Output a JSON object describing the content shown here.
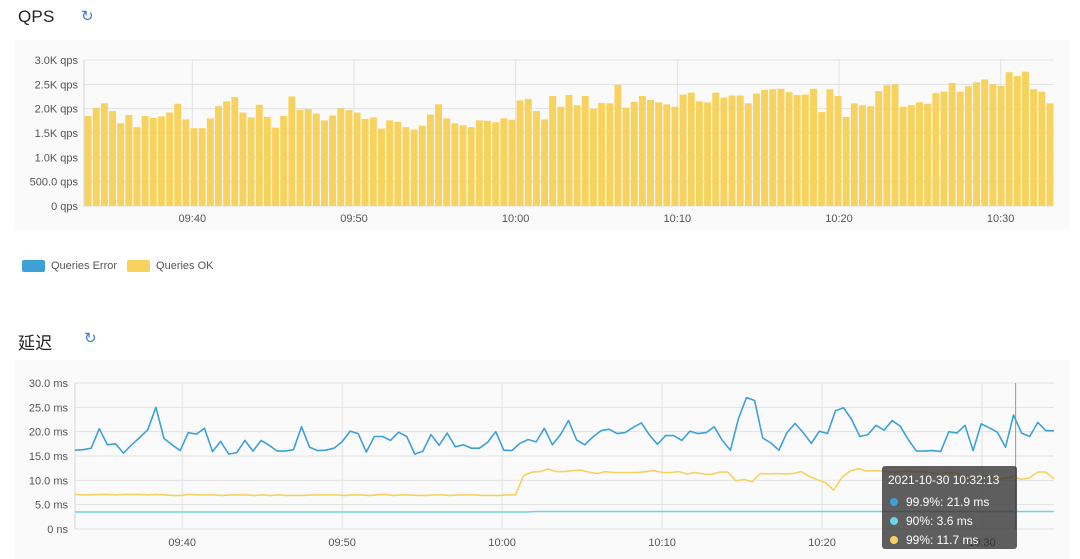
{
  "qps": {
    "title": "QPS",
    "refresh_icon": "refresh-icon",
    "legend": [
      {
        "label": "Queries Error",
        "color": "#3ea1d6"
      },
      {
        "label": "Queries OK",
        "color": "#f8d25f"
      }
    ]
  },
  "latency": {
    "title": "延迟",
    "refresh_icon": "refresh-icon"
  },
  "tooltip": {
    "time": "2021-10-30 10:32:13",
    "rows": [
      {
        "text": "99.9%: 21.9 ms",
        "color": "#3ea1d6"
      },
      {
        "text": "90%: 3.6 ms",
        "color": "#6fd3e8"
      },
      {
        "text": "99%: 11.7 ms",
        "color": "#f8d25f"
      }
    ]
  },
  "chart_data": [
    {
      "type": "bar",
      "title": "",
      "xlabel": "",
      "ylabel": "",
      "y_ticks": [
        "0 qps",
        "500.0 qps",
        "1.0K qps",
        "1.5K qps",
        "2.0K qps",
        "2.5K qps",
        "3.0K qps"
      ],
      "ylim": [
        0,
        3000
      ],
      "x_ticks": [
        "09:40",
        "09:50",
        "10:00",
        "10:10",
        "10:20",
        "10:30"
      ],
      "x_tick_minutes": [
        40,
        50,
        60,
        70,
        80,
        90
      ],
      "x_range_minutes": [
        33.3,
        93.3
      ],
      "grid": true,
      "legend_position": "bottom-left",
      "series": [
        {
          "name": "Queries Error",
          "color": "#3ea1d6",
          "values": []
        },
        {
          "name": "Queries OK",
          "color": "#f8d25f",
          "values": [
            1850,
            2020,
            2110,
            1950,
            1700,
            1870,
            1620,
            1850,
            1810,
            1840,
            1920,
            2100,
            1780,
            1600,
            1600,
            1800,
            2050,
            2150,
            2240,
            1920,
            1820,
            2080,
            1830,
            1610,
            1850,
            2250,
            1980,
            1990,
            1900,
            1760,
            1860,
            2010,
            1970,
            1920,
            1790,
            1820,
            1590,
            1760,
            1730,
            1620,
            1570,
            1650,
            1880,
            2090,
            1800,
            1700,
            1660,
            1620,
            1760,
            1750,
            1720,
            1800,
            1770,
            2170,
            2200,
            1950,
            1780,
            2260,
            2040,
            2280,
            2070,
            2260,
            2000,
            2120,
            2110,
            2490,
            2020,
            2140,
            2260,
            2180,
            2130,
            2090,
            2040,
            2290,
            2330,
            2150,
            2130,
            2330,
            2230,
            2270,
            2270,
            2110,
            2310,
            2390,
            2400,
            2410,
            2340,
            2280,
            2290,
            2410,
            1930,
            2400,
            2260,
            1830,
            2110,
            2070,
            2050,
            2360,
            2480,
            2500,
            2040,
            2070,
            2130,
            2100,
            2320,
            2350,
            2530,
            2350,
            2460,
            2540,
            2600,
            2500,
            2470,
            2750,
            2670,
            2760,
            2400,
            2350,
            2110
          ]
        }
      ]
    },
    {
      "type": "line",
      "title": "",
      "xlabel": "",
      "ylabel": "",
      "y_ticks": [
        "0 ns",
        "5.0 ms",
        "10.0 ms",
        "15.0 ms",
        "20.0 ms",
        "25.0 ms",
        "30.0 ms"
      ],
      "ylim": [
        0,
        30
      ],
      "x_ticks": [
        "09:40",
        "09:50",
        "10:00",
        "10:10",
        "10:20",
        "10:30"
      ],
      "x_tick_minutes": [
        40,
        50,
        60,
        70,
        80,
        90
      ],
      "x_range_minutes": [
        33.3,
        94.5
      ],
      "grid": true,
      "series": [
        {
          "name": "99.9%",
          "color": "#3ea1d6",
          "values": [
            16.2,
            16.3,
            16.6,
            20.6,
            17.3,
            17.5,
            15.6,
            17.3,
            18.8,
            20.4,
            25.0,
            18.6,
            17.3,
            16.1,
            19.8,
            19.5,
            20.7,
            15.9,
            18.0,
            15.4,
            15.7,
            18.2,
            16.0,
            18.2,
            17.2,
            16.0,
            16.0,
            16.3,
            21.0,
            16.8,
            16.1,
            16.2,
            16.6,
            17.9,
            20.1,
            19.6,
            15.8,
            19.0,
            19.0,
            18.2,
            19.9,
            19.0,
            15.4,
            16.0,
            19.4,
            17.2,
            19.7,
            16.9,
            17.3,
            16.6,
            16.6,
            17.8,
            20.0,
            16.2,
            16.1,
            17.6,
            18.4,
            17.9,
            20.7,
            17.3,
            19.4,
            22.3,
            18.3,
            17.3,
            18.9,
            20.2,
            20.5,
            19.6,
            19.8,
            20.9,
            21.8,
            19.3,
            17.4,
            19.2,
            19.2,
            18.2,
            20.1,
            19.6,
            19.8,
            21.0,
            18.2,
            16.2,
            22.7,
            27.0,
            26.4,
            18.7,
            17.7,
            16.2,
            19.8,
            21.7,
            19.8,
            17.6,
            20.1,
            19.6,
            24.3,
            24.9,
            22.5,
            19.0,
            19.4,
            21.3,
            20.3,
            22.3,
            21.1,
            18.3,
            16.0,
            16.0,
            16.1,
            15.9,
            20.0,
            19.7,
            21.3,
            16.1,
            21.6,
            20.8,
            19.9,
            16.8,
            23.4,
            19.7,
            19.0,
            21.9,
            20.2,
            20.2
          ]
        },
        {
          "name": "90%",
          "color": "#6fd3e8",
          "values": [
            3.5,
            3.5,
            3.5,
            3.5,
            3.5,
            3.5,
            3.5,
            3.5,
            3.5,
            3.5,
            3.5,
            3.5,
            3.5,
            3.5,
            3.5,
            3.5,
            3.5,
            3.5,
            3.5,
            3.5,
            3.5,
            3.5,
            3.5,
            3.5,
            3.5,
            3.5,
            3.5,
            3.5,
            3.5,
            3.5,
            3.5,
            3.5,
            3.5,
            3.5,
            3.5,
            3.5,
            3.5,
            3.5,
            3.5,
            3.5,
            3.5,
            3.5,
            3.5,
            3.5,
            3.5,
            3.5,
            3.5,
            3.5,
            3.5,
            3.5,
            3.5,
            3.5,
            3.5,
            3.5,
            3.5,
            3.5,
            3.6,
            3.6,
            3.6,
            3.6,
            3.6,
            3.6,
            3.6,
            3.6,
            3.6,
            3.6,
            3.6,
            3.6,
            3.6,
            3.6,
            3.6,
            3.6,
            3.6,
            3.6,
            3.6,
            3.6,
            3.6,
            3.6,
            3.6,
            3.6,
            3.6,
            3.6,
            3.6,
            3.6,
            3.6,
            3.6,
            3.6,
            3.6,
            3.6,
            3.6,
            3.6,
            3.6,
            3.6,
            3.6,
            3.6,
            3.6,
            3.6,
            3.6,
            3.6,
            3.6,
            3.6,
            3.6,
            3.6,
            3.6,
            3.6,
            3.6,
            3.6,
            3.6,
            3.6,
            3.6,
            3.6,
            3.6,
            3.6,
            3.6,
            3.6,
            3.6,
            3.6,
            3.6,
            3.6,
            3.6
          ]
        },
        {
          "name": "99%",
          "color": "#f8d25f",
          "values": [
            7.1,
            7.0,
            7.0,
            7.1,
            7.1,
            7.0,
            7.1,
            7.1,
            7.1,
            7.0,
            7.1,
            7.0,
            6.9,
            6.9,
            7.1,
            7.0,
            7.0,
            7.0,
            6.9,
            7.0,
            7.0,
            7.0,
            6.9,
            7.0,
            6.9,
            7.0,
            6.9,
            6.9,
            6.9,
            7.0,
            7.0,
            7.0,
            7.0,
            6.9,
            7.0,
            7.0,
            6.9,
            7.0,
            7.1,
            6.9,
            7.0,
            7.0,
            6.9,
            6.9,
            7.0,
            7.0,
            6.9,
            7.0,
            7.0,
            7.0,
            6.9,
            6.9,
            6.9,
            7.0,
            7.0,
            11.0,
            11.7,
            11.8,
            12.3,
            11.8,
            11.8,
            12.0,
            12.1,
            11.7,
            11.4,
            11.8,
            11.6,
            11.6,
            11.6,
            11.6,
            11.8,
            12.0,
            11.6,
            11.6,
            11.8,
            11.3,
            11.6,
            11.3,
            11.2,
            11.7,
            11.7,
            9.9,
            10.2,
            9.7,
            11.4,
            11.3,
            11.4,
            11.3,
            11.4,
            11.8,
            10.8,
            10.1,
            9.5,
            8.0,
            10.6,
            11.9,
            12.4,
            11.9,
            12.0,
            11.9,
            11.7,
            11.7,
            11.9,
            11.7,
            11.8,
            11.5,
            11.3,
            11.7,
            11.4,
            10.5,
            10.4,
            10.8,
            11.0,
            10.3,
            10.4,
            10.7,
            10.2,
            10.5,
            11.7,
            11.7,
            10.3
          ]
        }
      ]
    }
  ]
}
